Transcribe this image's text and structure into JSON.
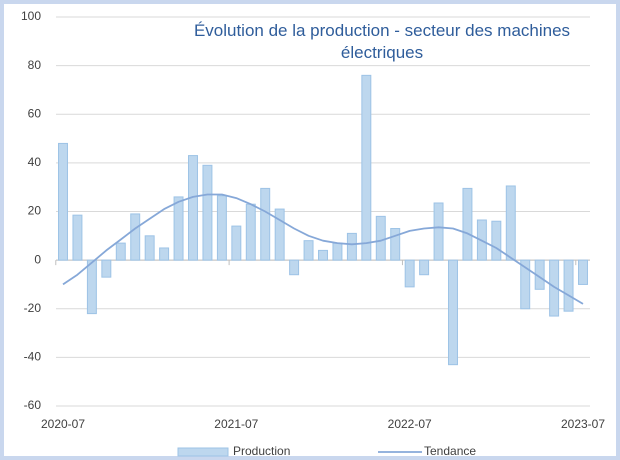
{
  "chart_data": {
    "type": "bar_line",
    "title": "Évolution de la production - secteur des machines électriques",
    "categories": [
      "2020-07",
      null,
      null,
      null,
      null,
      null,
      null,
      null,
      null,
      null,
      null,
      null,
      "2021-07",
      null,
      null,
      null,
      null,
      null,
      null,
      null,
      null,
      null,
      null,
      null,
      "2022-07",
      null,
      null,
      null,
      null,
      null,
      null,
      null,
      null,
      null,
      null,
      null,
      "2023-07"
    ],
    "series": [
      {
        "name": "Production",
        "kind": "bar",
        "color": "#bdd7ee",
        "values": [
          48,
          18.5,
          -22,
          -7,
          7,
          19,
          10,
          5,
          26,
          43,
          39,
          26.5,
          14,
          23,
          29.5,
          21,
          -6,
          8,
          4,
          7,
          11,
          76,
          18,
          13,
          -11,
          -6,
          23.5,
          -43,
          29.5,
          16.5,
          16,
          30.5,
          -20,
          -12,
          -23,
          -21,
          -10
        ]
      },
      {
        "name": "Tendance",
        "kind": "line",
        "color": "#86a8d8",
        "values": [
          -10,
          -6,
          -1,
          4,
          8.5,
          13,
          17,
          21,
          24,
          26,
          27,
          27,
          25.5,
          23,
          20,
          16.5,
          13,
          10,
          8,
          7,
          6.5,
          7,
          8,
          10,
          12,
          13,
          13.5,
          13,
          11,
          8,
          5,
          1,
          -3,
          -7,
          -11,
          -14.5,
          -18
        ]
      }
    ],
    "ylim": [
      -60,
      100
    ],
    "yticks": [
      -60,
      -40,
      -20,
      0,
      20,
      40,
      60,
      80,
      100
    ],
    "grid": true,
    "legend": "bottom"
  }
}
